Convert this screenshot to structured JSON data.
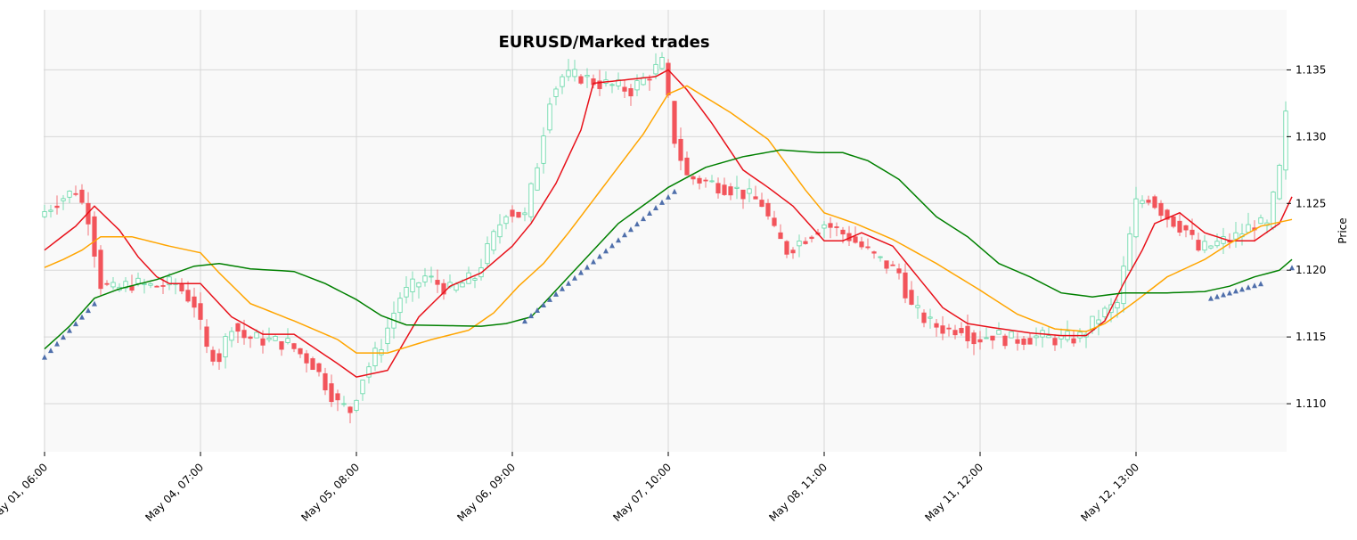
{
  "chart_data": {
    "type": "candlestick",
    "title": "EURUSD/Marked trades",
    "xlabel": "",
    "ylabel": "Price",
    "ylim": [
      1.1064,
      1.1395
    ],
    "y_ticks": [
      "1.110",
      "1.115",
      "1.120",
      "1.125",
      "1.130",
      "1.135"
    ],
    "x_tick_labels": [
      "May 01, 06:00",
      "May 04, 07:00",
      "May 05, 08:00",
      "May 06, 09:00",
      "May 07, 10:00",
      "May 08, 11:00",
      "May 11, 12:00",
      "May 12, 13:00"
    ],
    "x_tick_index": [
      0,
      25,
      50,
      75,
      100,
      125,
      150,
      175
    ],
    "n_candles": 200,
    "grid": true,
    "colors": {
      "up": "#5fd6a4",
      "down": "#f2545b",
      "ma_fast": "#e8111a",
      "ma_mid": "#ffa500",
      "ma_slow": "#008000",
      "marker": "#4f6fab",
      "plot_bg": "#f9f9f9",
      "grid": "#d7d7d7"
    },
    "series": [
      {
        "name": "",
        "color": "#e8111a",
        "anchors": [
          [
            0,
            1.1215
          ],
          [
            5,
            1.1233
          ],
          [
            8,
            1.1248
          ],
          [
            12,
            1.123
          ],
          [
            15,
            1.121
          ],
          [
            18,
            1.1195
          ],
          [
            20,
            1.119
          ],
          [
            25,
            1.119
          ],
          [
            30,
            1.1165
          ],
          [
            35,
            1.1152
          ],
          [
            40,
            1.1152
          ],
          [
            47,
            1.113
          ],
          [
            50,
            1.112
          ],
          [
            55,
            1.1125
          ],
          [
            60,
            1.1165
          ],
          [
            65,
            1.1188
          ],
          [
            70,
            1.1198
          ],
          [
            75,
            1.1218
          ],
          [
            78,
            1.1235
          ],
          [
            82,
            1.1265
          ],
          [
            86,
            1.1305
          ],
          [
            88,
            1.134
          ],
          [
            92,
            1.1342
          ],
          [
            98,
            1.1345
          ],
          [
            100,
            1.135
          ],
          [
            103,
            1.1335
          ],
          [
            107,
            1.131
          ],
          [
            112,
            1.1275
          ],
          [
            116,
            1.1262
          ],
          [
            120,
            1.1248
          ],
          [
            125,
            1.1222
          ],
          [
            128,
            1.1222
          ],
          [
            131,
            1.1228
          ],
          [
            136,
            1.1218
          ],
          [
            140,
            1.1195
          ],
          [
            144,
            1.1172
          ],
          [
            148,
            1.116
          ],
          [
            152,
            1.1157
          ],
          [
            158,
            1.1153
          ],
          [
            163,
            1.1151
          ],
          [
            167,
            1.1151
          ],
          [
            170,
            1.1162
          ],
          [
            173,
            1.119
          ],
          [
            176,
            1.1215
          ],
          [
            178,
            1.1235
          ],
          [
            182,
            1.1243
          ],
          [
            186,
            1.1228
          ],
          [
            190,
            1.1222
          ],
          [
            194,
            1.1222
          ],
          [
            198,
            1.1235
          ],
          [
            200,
            1.1255
          ]
        ]
      },
      {
        "name": "",
        "color": "#ffa500",
        "anchors": [
          [
            0,
            1.1202
          ],
          [
            3,
            1.1208
          ],
          [
            6,
            1.1215
          ],
          [
            9,
            1.1225
          ],
          [
            14,
            1.1225
          ],
          [
            20,
            1.1218
          ],
          [
            25,
            1.1213
          ],
          [
            28,
            1.1198
          ],
          [
            33,
            1.1175
          ],
          [
            40,
            1.1162
          ],
          [
            47,
            1.1148
          ],
          [
            50,
            1.1138
          ],
          [
            55,
            1.1138
          ],
          [
            62,
            1.1148
          ],
          [
            68,
            1.1155
          ],
          [
            72,
            1.1168
          ],
          [
            76,
            1.1188
          ],
          [
            80,
            1.1205
          ],
          [
            84,
            1.1228
          ],
          [
            90,
            1.1265
          ],
          [
            96,
            1.1302
          ],
          [
            100,
            1.1332
          ],
          [
            103,
            1.1338
          ],
          [
            110,
            1.1318
          ],
          [
            116,
            1.1298
          ],
          [
            122,
            1.126
          ],
          [
            125,
            1.1243
          ],
          [
            130,
            1.1235
          ],
          [
            136,
            1.1223
          ],
          [
            143,
            1.1205
          ],
          [
            150,
            1.1185
          ],
          [
            156,
            1.1167
          ],
          [
            162,
            1.1156
          ],
          [
            167,
            1.1154
          ],
          [
            170,
            1.116
          ],
          [
            175,
            1.1177
          ],
          [
            180,
            1.1195
          ],
          [
            186,
            1.1208
          ],
          [
            190,
            1.122
          ],
          [
            195,
            1.1233
          ],
          [
            200,
            1.1238
          ]
        ]
      },
      {
        "name": "",
        "color": "#008000",
        "anchors": [
          [
            0,
            1.1141
          ],
          [
            4,
            1.1158
          ],
          [
            8,
            1.1179
          ],
          [
            12,
            1.1186
          ],
          [
            18,
            1.1193
          ],
          [
            24,
            1.1203
          ],
          [
            28,
            1.1205
          ],
          [
            33,
            1.1201
          ],
          [
            40,
            1.1199
          ],
          [
            45,
            1.119
          ],
          [
            50,
            1.1178
          ],
          [
            54,
            1.1166
          ],
          [
            58,
            1.1159
          ],
          [
            70,
            1.1158
          ],
          [
            74,
            1.116
          ],
          [
            78,
            1.1165
          ],
          [
            82,
            1.1185
          ],
          [
            86,
            1.1205
          ],
          [
            92,
            1.1235
          ],
          [
            100,
            1.1262
          ],
          [
            106,
            1.1277
          ],
          [
            112,
            1.1285
          ],
          [
            118,
            1.129
          ],
          [
            124,
            1.1288
          ],
          [
            128,
            1.1288
          ],
          [
            132,
            1.1282
          ],
          [
            137,
            1.1268
          ],
          [
            143,
            1.124
          ],
          [
            148,
            1.1225
          ],
          [
            153,
            1.1205
          ],
          [
            158,
            1.1195
          ],
          [
            163,
            1.1183
          ],
          [
            168,
            1.118
          ],
          [
            173,
            1.1183
          ],
          [
            180,
            1.1183
          ],
          [
            186,
            1.1184
          ],
          [
            190,
            1.1188
          ],
          [
            194,
            1.1195
          ],
          [
            198,
            1.12
          ],
          [
            200,
            1.1208
          ]
        ]
      }
    ],
    "price_anchors": [
      [
        0,
        1.124
      ],
      [
        3,
        1.1252
      ],
      [
        6,
        1.126
      ],
      [
        8,
        1.124
      ],
      [
        10,
        1.119
      ],
      [
        12,
        1.1185
      ],
      [
        15,
        1.119
      ],
      [
        18,
        1.1188
      ],
      [
        22,
        1.119
      ],
      [
        25,
        1.1175
      ],
      [
        27,
        1.114
      ],
      [
        29,
        1.1135
      ],
      [
        31,
        1.116
      ],
      [
        33,
        1.115
      ],
      [
        36,
        1.1148
      ],
      [
        40,
        1.1145
      ],
      [
        44,
        1.113
      ],
      [
        48,
        1.11
      ],
      [
        50,
        1.1095
      ],
      [
        52,
        1.112
      ],
      [
        55,
        1.1145
      ],
      [
        58,
        1.118
      ],
      [
        62,
        1.1195
      ],
      [
        66,
        1.1185
      ],
      [
        70,
        1.1195
      ],
      [
        73,
        1.1225
      ],
      [
        75,
        1.1245
      ],
      [
        78,
        1.124
      ],
      [
        80,
        1.128
      ],
      [
        82,
        1.133
      ],
      [
        84,
        1.1345
      ],
      [
        87,
        1.1345
      ],
      [
        90,
        1.134
      ],
      [
        95,
        1.1335
      ],
      [
        100,
        1.1355
      ],
      [
        102,
        1.1298
      ],
      [
        104,
        1.127
      ],
      [
        108,
        1.1265
      ],
      [
        112,
        1.126
      ],
      [
        116,
        1.125
      ],
      [
        118,
        1.1228
      ],
      [
        120,
        1.1215
      ],
      [
        124,
        1.1228
      ],
      [
        126,
        1.1235
      ],
      [
        130,
        1.1225
      ],
      [
        134,
        1.121
      ],
      [
        138,
        1.1198
      ],
      [
        140,
        1.1172
      ],
      [
        143,
        1.116
      ],
      [
        146,
        1.1155
      ],
      [
        148,
        1.1158
      ],
      [
        150,
        1.1148
      ],
      [
        153,
        1.1152
      ],
      [
        156,
        1.1148
      ],
      [
        160,
        1.115
      ],
      [
        164,
        1.1148
      ],
      [
        167,
        1.115
      ],
      [
        170,
        1.1165
      ],
      [
        173,
        1.1175
      ],
      [
        176,
        1.125
      ],
      [
        178,
        1.1255
      ],
      [
        181,
        1.124
      ],
      [
        184,
        1.123
      ],
      [
        186,
        1.1215
      ],
      [
        189,
        1.122
      ],
      [
        192,
        1.1225
      ],
      [
        195,
        1.1235
      ],
      [
        197,
        1.1232
      ],
      [
        199,
        1.1275
      ],
      [
        200,
        1.1315
      ]
    ],
    "trade_markers": [
      {
        "start": 0,
        "end": 8,
        "y_start": 1.1135,
        "y_end": 1.1175
      },
      {
        "start": 77,
        "end": 101,
        "y_start": 1.1162,
        "y_end": 1.1259
      },
      {
        "start": 187,
        "end": 195,
        "y_start": 1.1179,
        "y_end": 1.119
      },
      {
        "start": 200,
        "end": 200,
        "y_start": 1.1202,
        "y_end": 1.1202
      }
    ]
  }
}
